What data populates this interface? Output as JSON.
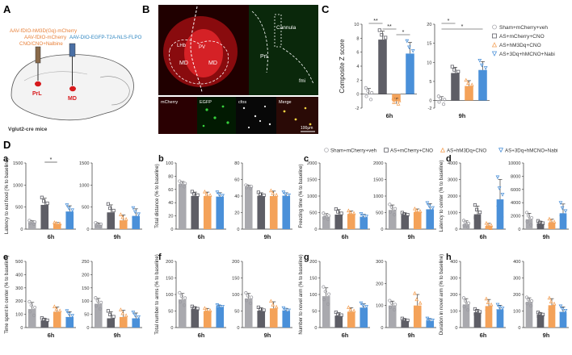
{
  "panel_labels": {
    "A": "A",
    "B": "B",
    "C": "C",
    "D": "D"
  },
  "panelA": {
    "label_virus1": "AAV-fDIO-hM3D(Gq)-mCherry",
    "label_virus2": "AAV-fDIO-mCherry",
    "label_drug": "CNO/CNO+Nalbine",
    "label_virus3": "AAV-DIO-EGFP-T2A-NLS-FLPO",
    "region_prl": "PrL",
    "region_md": "MD",
    "mouse_line": "Vglut2-cre mice",
    "colors": {
      "orange": "#E8813A",
      "blue": "#2E86C1",
      "red": "#D7191C"
    }
  },
  "panelB": {
    "labels": {
      "lhb": "LHb",
      "pv": "PV",
      "md_left": "MD",
      "md_right": "MD",
      "cannula": "Cannula",
      "prl": "PrL",
      "fmi": "fmi"
    },
    "small_panels": [
      "mCherry",
      "EGFP",
      "cfos",
      "Merge"
    ],
    "scale_bar": "100μm"
  },
  "legend": {
    "items": [
      "Sham+mCherry+veh",
      "AS+mCherry+CNO",
      "AS+hM3Dq+CNO",
      "AS+3Dq+hMCNO+Nabi"
    ],
    "colors": [
      "#A9A9AE",
      "#5E5E66",
      "#F4A259",
      "#4A90D9"
    ],
    "markers": [
      "circle",
      "square",
      "triangle-up",
      "triangle-down"
    ]
  },
  "chart_data": [
    {
      "id": "C-6h",
      "panel": "C",
      "type": "bar",
      "ylabel": "Composite Z score",
      "xlabel": "6h",
      "ylim": [
        -2,
        10
      ],
      "yticks": [
        -2,
        0,
        2,
        4,
        6,
        8,
        10
      ],
      "values": [
        0.0,
        7.8,
        -1.0,
        5.8
      ],
      "errors": [
        0.8,
        1.2,
        0.4,
        1.6
      ],
      "significance": [
        {
          "from": 0,
          "to": 1,
          "label": "**"
        },
        {
          "from": 1,
          "to": 2,
          "label": "**"
        },
        {
          "from": 2,
          "to": 3,
          "label": "*"
        }
      ]
    },
    {
      "id": "C-9h",
      "panel": "C",
      "type": "bar",
      "ylabel": "",
      "xlabel": "9h",
      "ylim": [
        -2,
        20
      ],
      "yticks": [
        -2,
        0,
        5,
        10,
        15,
        20
      ],
      "values": [
        0.0,
        7.2,
        3.8,
        8.0
      ],
      "errors": [
        1.0,
        1.5,
        1.4,
        2.2
      ],
      "significance": [
        {
          "from": 0,
          "to": 1,
          "label": "*"
        },
        {
          "from": 0,
          "to": 3,
          "label": "*"
        }
      ]
    },
    {
      "id": "a-6h",
      "panel": "a",
      "type": "bar",
      "ylabel": "Latency to eat food (% to baseline)",
      "xlabel": "6h",
      "ylim": [
        0,
        1500
      ],
      "yticks": [
        0,
        500,
        1000,
        1500
      ],
      "values": [
        150,
        550,
        120,
        400
      ],
      "errors": [
        40,
        150,
        30,
        130
      ],
      "significance": [
        {
          "from": 1,
          "to": 2,
          "label": "*"
        }
      ]
    },
    {
      "id": "a-9h",
      "panel": "a",
      "type": "bar",
      "ylabel": "",
      "xlabel": "9h",
      "ylim": [
        0,
        1500
      ],
      "yticks": [
        0,
        500,
        1000,
        1500
      ],
      "values": [
        100,
        380,
        200,
        300
      ],
      "errors": [
        40,
        170,
        120,
        160
      ],
      "significance": []
    },
    {
      "id": "b-6h",
      "panel": "b",
      "type": "bar",
      "ylabel": "Total distance (% to baseline)",
      "xlabel": "6h",
      "ylim": [
        0,
        100
      ],
      "yticks": [
        0,
        20,
        40,
        60,
        80,
        100
      ],
      "values": [
        68,
        50,
        50,
        49
      ],
      "errors": [
        4,
        6,
        6,
        6
      ],
      "significance": []
    },
    {
      "id": "b-9h",
      "panel": "b",
      "type": "bar",
      "ylabel": "",
      "xlabel": "9h",
      "ylim": [
        0,
        80
      ],
      "yticks": [
        0,
        20,
        40,
        60,
        80
      ],
      "values": [
        51,
        40,
        40,
        40
      ],
      "errors": [
        2,
        4,
        6,
        4
      ],
      "significance": []
    },
    {
      "id": "c-6h",
      "panel": "c",
      "type": "bar",
      "ylabel": "Freezing time (% to baseline)",
      "xlabel": "6h",
      "ylim": [
        0,
        2000
      ],
      "yticks": [
        0,
        500,
        1000,
        1500,
        2000
      ],
      "values": [
        380,
        440,
        460,
        360
      ],
      "errors": [
        90,
        150,
        90,
        90
      ],
      "significance": []
    },
    {
      "id": "c-9h",
      "panel": "c",
      "type": "bar",
      "ylabel": "",
      "xlabel": "9h",
      "ylim": [
        0,
        2000
      ],
      "yticks": [
        0,
        500,
        1000,
        1500,
        2000
      ],
      "values": [
        580,
        420,
        520,
        600
      ],
      "errors": [
        150,
        70,
        90,
        170
      ],
      "significance": []
    },
    {
      "id": "d-6h",
      "panel": "d",
      "type": "bar",
      "ylabel": "Latency to center (% to baseline)",
      "xlabel": "6h",
      "ylim": [
        0,
        4000
      ],
      "yticks": [
        0,
        1000,
        2000,
        3000,
        4000
      ],
      "values": [
        300,
        900,
        200,
        1800
      ],
      "errors": [
        200,
        500,
        150,
        1200
      ],
      "significance": []
    },
    {
      "id": "d-9h",
      "panel": "d",
      "type": "bar",
      "ylabel": "",
      "xlabel": "9h",
      "ylim": [
        0,
        10000
      ],
      "yticks": [
        0,
        2000,
        4000,
        6000,
        8000,
        10000
      ],
      "values": [
        1500,
        800,
        1000,
        2400
      ],
      "errors": [
        900,
        400,
        500,
        1400
      ],
      "significance": []
    },
    {
      "id": "e-6h",
      "panel": "e",
      "type": "bar",
      "ylabel": "Time spent in center (% to baseline)",
      "xlabel": "6h",
      "ylim": [
        0,
        500
      ],
      "yticks": [
        0,
        100,
        200,
        300,
        400,
        500
      ],
      "values": [
        140,
        50,
        120,
        80
      ],
      "errors": [
        50,
        20,
        35,
        40
      ],
      "significance": []
    },
    {
      "id": "e-9h",
      "panel": "e",
      "type": "bar",
      "ylabel": "",
      "xlabel": "9h",
      "ylim": [
        0,
        250
      ],
      "yticks": [
        0,
        50,
        100,
        150,
        200,
        250
      ],
      "values": [
        90,
        35,
        40,
        35
      ],
      "errors": [
        20,
        25,
        25,
        20
      ],
      "significance": []
    },
    {
      "id": "f-6h",
      "panel": "f",
      "type": "bar",
      "ylabel": "Total number to arms (% to baseline)",
      "xlabel": "6h",
      "ylim": [
        0,
        200
      ],
      "yticks": [
        0,
        50,
        100,
        150,
        200
      ],
      "values": [
        85,
        55,
        50,
        62
      ],
      "errors": [
        18,
        8,
        8,
        5
      ],
      "significance": []
    },
    {
      "id": "f-9h",
      "panel": "f",
      "type": "bar",
      "ylabel": "",
      "xlabel": "9h",
      "ylim": [
        0,
        200
      ],
      "yticks": [
        0,
        50,
        100,
        150,
        200
      ],
      "values": [
        88,
        50,
        58,
        50
      ],
      "errors": [
        15,
        10,
        20,
        8
      ],
      "significance": []
    },
    {
      "id": "g-6h",
      "panel": "g",
      "type": "bar",
      "ylabel": "Number to novel arm (% to baseline)",
      "xlabel": "6h",
      "ylim": [
        0,
        200
      ],
      "yticks": [
        0,
        50,
        100,
        150,
        200
      ],
      "values": [
        95,
        35,
        48,
        60
      ],
      "errors": [
        25,
        10,
        12,
        12
      ],
      "significance": []
    },
    {
      "id": "g-9h",
      "panel": "g",
      "type": "bar",
      "ylabel": "",
      "xlabel": "9h",
      "ylim": [
        0,
        300
      ],
      "yticks": [
        0,
        100,
        200,
        300
      ],
      "values": [
        100,
        30,
        100,
        30
      ],
      "errors": [
        20,
        10,
        50,
        10
      ],
      "significance": []
    },
    {
      "id": "h-6h",
      "panel": "h",
      "type": "bar",
      "ylabel": "Duration in novel arm (% to baseline)",
      "xlabel": "6h",
      "ylim": [
        0,
        400
      ],
      "yticks": [
        0,
        100,
        200,
        300,
        400
      ],
      "values": [
        140,
        90,
        130,
        110
      ],
      "errors": [
        35,
        20,
        40,
        25
      ],
      "significance": []
    },
    {
      "id": "h-9h",
      "panel": "h",
      "type": "bar",
      "ylabel": "",
      "xlabel": "9h",
      "ylim": [
        0,
        400
      ],
      "yticks": [
        0,
        100,
        200,
        300,
        400
      ],
      "values": [
        155,
        75,
        135,
        95
      ],
      "errors": [
        25,
        15,
        40,
        30
      ],
      "significance": []
    }
  ]
}
